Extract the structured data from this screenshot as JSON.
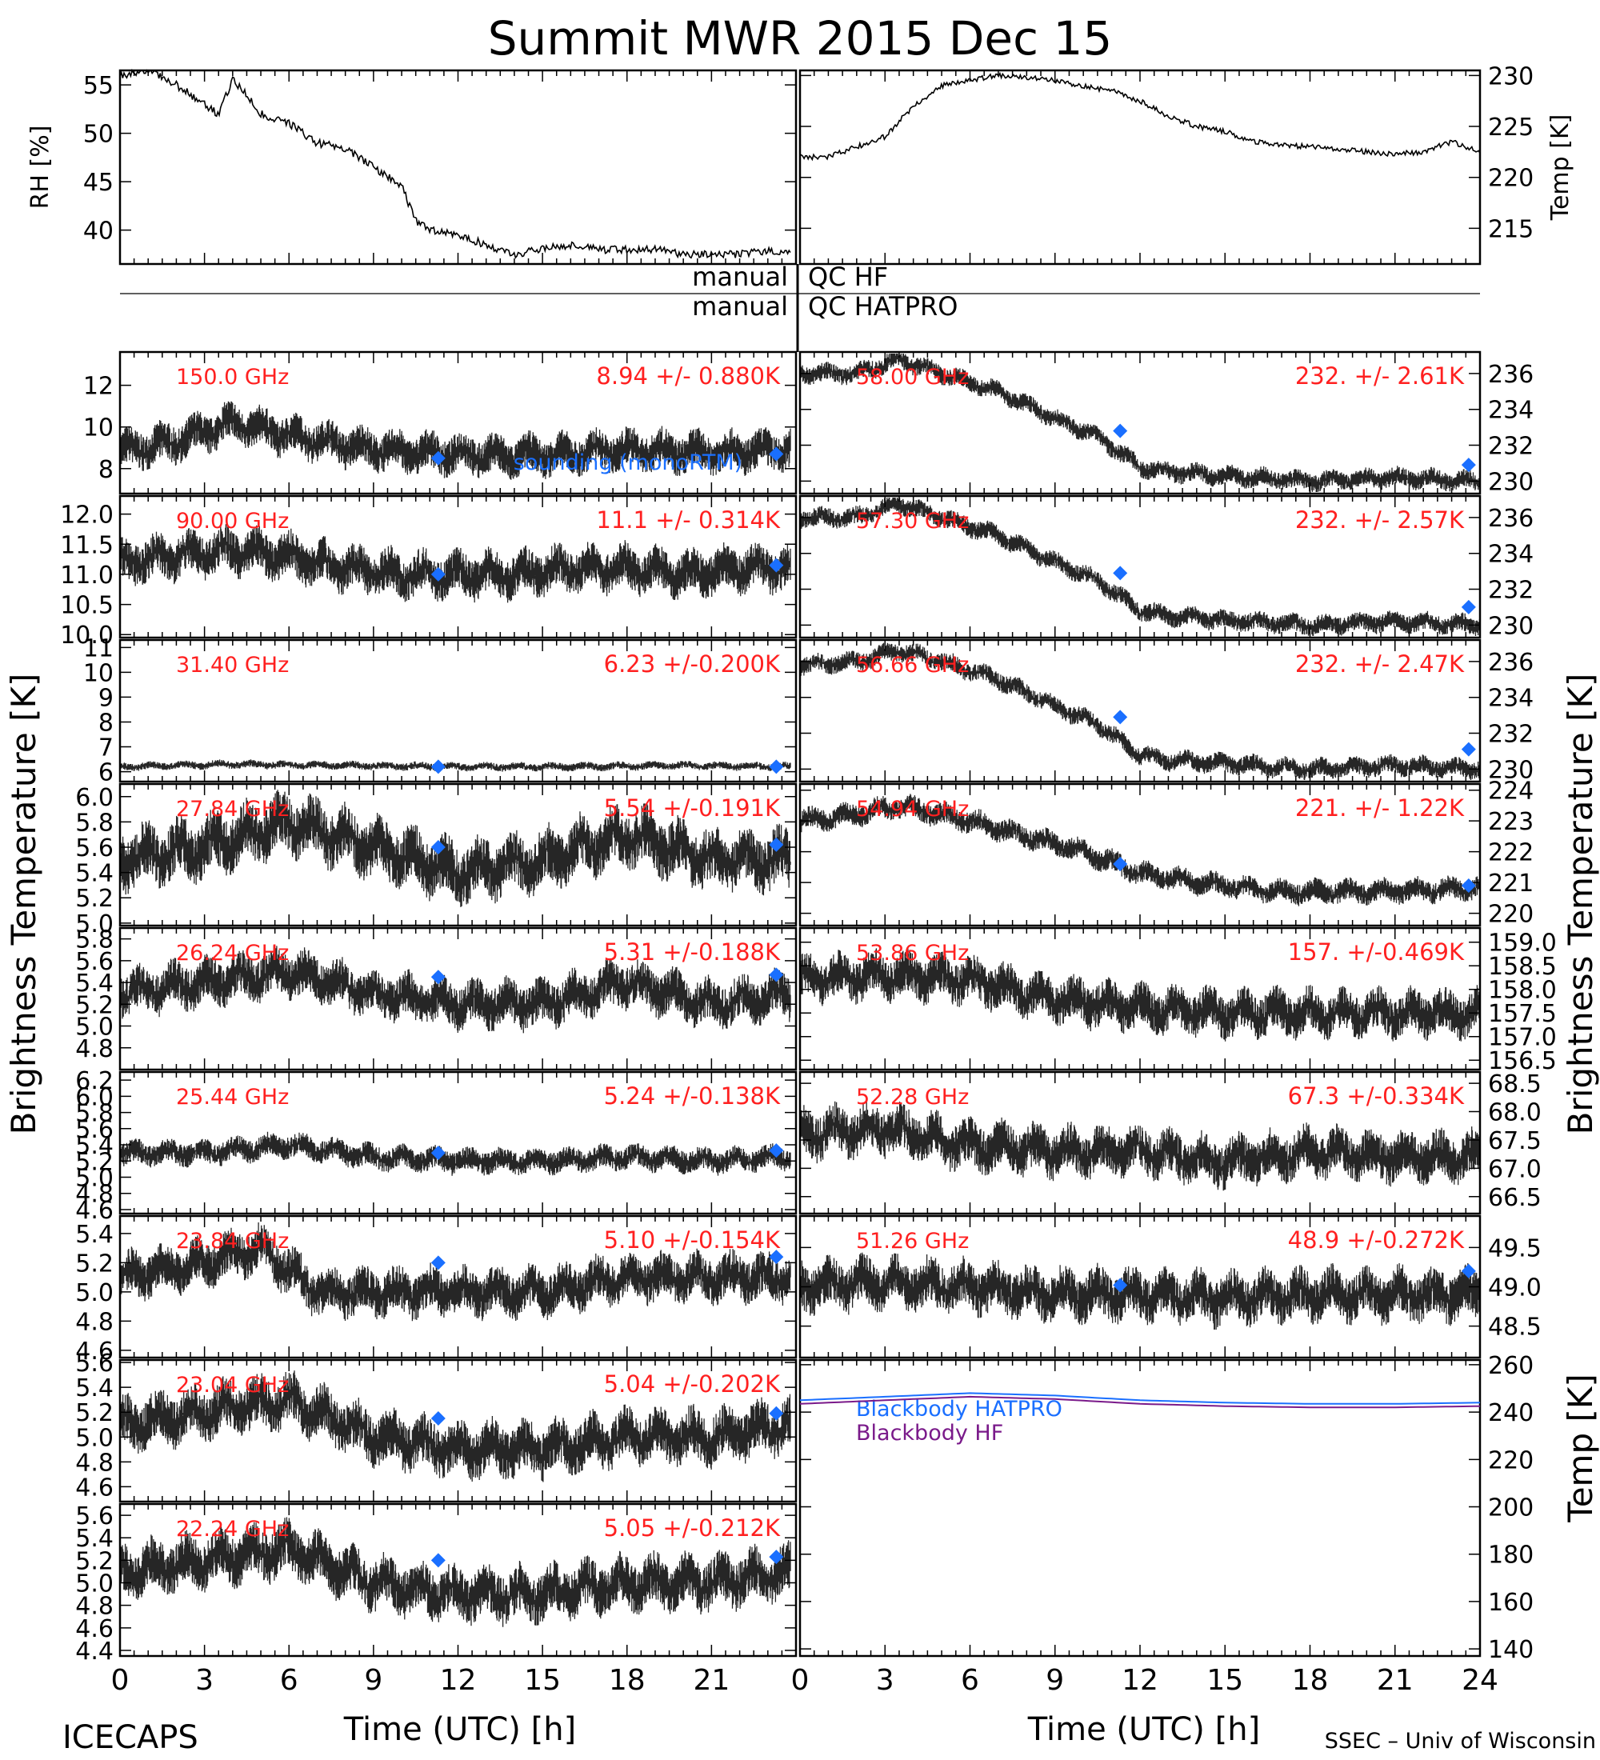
{
  "title": "Summit MWR 2015 Dec 15",
  "footer": {
    "left_label": "ICECAPS",
    "right_label": "SSEC – Univ of Wisconsin",
    "xlabel": "Time (UTC) [h]"
  },
  "colors": {
    "mark": "#000000",
    "annotation": "#ff2020",
    "sounding": "#1a6fff",
    "bb_hatpro": "#1a6fff",
    "bb_hf": "#7a1a8a"
  },
  "qc": {
    "left1": "manual",
    "right1": "QC HF",
    "left2": "manual",
    "right2": "QC HATPRO"
  },
  "side_labels": {
    "left": "Brightness Temperature [K]",
    "right": "Brightness Temperature [K]",
    "right_temp": "Temp [K]"
  },
  "x_ticks_left": [
    "0",
    "3",
    "6",
    "9",
    "12",
    "15",
    "18",
    "21"
  ],
  "x_ticks_right": [
    "0",
    "3",
    "6",
    "9",
    "12",
    "15",
    "18",
    "21",
    "24"
  ],
  "chart_data": [
    {
      "type": "line",
      "panel": "rh",
      "ylabel": "RH [%]",
      "yticks": [
        "40",
        "45",
        "50",
        "55"
      ],
      "ylim": [
        36.5,
        56.5
      ],
      "x_hours": [
        0,
        1,
        2,
        3,
        3.5,
        4,
        4.5,
        5,
        6,
        7,
        8,
        9,
        10,
        10.5,
        11,
        12,
        13,
        14,
        15,
        16,
        17,
        18,
        19,
        20,
        21,
        22,
        23,
        23.8
      ],
      "values": [
        56,
        56.5,
        55,
        53,
        52,
        55.5,
        54,
        52,
        51,
        49,
        48.5,
        46.5,
        44.5,
        41,
        40,
        39.5,
        38.5,
        37.5,
        38,
        38.5,
        38,
        38,
        38,
        37.5,
        37.5,
        37.5,
        37.8,
        37.7
      ]
    },
    {
      "type": "line",
      "panel": "temp",
      "ylabel": "Temp [K]",
      "yticks": [
        "215",
        "220",
        "225",
        "230"
      ],
      "ylim": [
        211.5,
        230.5
      ],
      "x_hours": [
        0,
        1,
        2,
        3,
        4,
        5,
        6,
        7,
        8,
        9,
        10,
        11,
        12,
        13,
        14,
        15,
        16,
        17,
        18,
        19,
        20,
        21,
        22,
        23,
        24
      ],
      "values": [
        222,
        222,
        223,
        224,
        227,
        229,
        229.5,
        230,
        229.8,
        229.5,
        229,
        228.5,
        227.5,
        226,
        225,
        224.5,
        223.5,
        223.2,
        223,
        222.8,
        222.5,
        222.3,
        222.5,
        223.5,
        222.5
      ]
    },
    {
      "type": "scatter",
      "column": "left",
      "row": 0,
      "freq_label": "150.0 GHz",
      "stat_label": "8.94 +/- 0.880K",
      "yticks": [
        "8",
        "10",
        "12"
      ],
      "ylim": [
        6.8,
        13.6
      ],
      "x_hours": [
        0,
        2,
        4,
        6,
        8,
        10,
        12,
        14,
        16,
        18,
        20,
        22,
        23.8
      ],
      "values": [
        8.8,
        9.3,
        10.2,
        9.6,
        9.1,
        8.8,
        8.7,
        8.6,
        8.7,
        8.9,
        8.8,
        8.8,
        8.9
      ],
      "spread": 0.9,
      "sounding": [
        {
          "x": 11.3,
          "y": 8.5
        },
        {
          "x": 23.3,
          "y": 8.7
        }
      ],
      "note": "sounding (monoRTM)"
    },
    {
      "type": "scatter",
      "column": "left",
      "row": 1,
      "freq_label": "90.00 GHz",
      "stat_label": "11.1 +/- 0.314K",
      "yticks": [
        "10.0",
        "10.5",
        "11.0",
        "11.5",
        "12.0"
      ],
      "ylim": [
        9.95,
        12.3
      ],
      "x_hours": [
        0,
        2,
        4,
        6,
        8,
        10,
        12,
        14,
        16,
        18,
        20,
        22,
        23.8
      ],
      "values": [
        11.2,
        11.3,
        11.4,
        11.3,
        11.1,
        11.0,
        11.0,
        11.0,
        11.1,
        11.1,
        11.0,
        11.1,
        11.1
      ],
      "spread": 0.35,
      "sounding": [
        {
          "x": 11.3,
          "y": 11.0
        },
        {
          "x": 23.3,
          "y": 11.15
        }
      ]
    },
    {
      "type": "scatter",
      "column": "left",
      "row": 2,
      "freq_label": "31.40 GHz",
      "stat_label": "6.23 +/-0.200K",
      "yticks": [
        "6",
        "7",
        "8",
        "9",
        "10",
        "11"
      ],
      "ylim": [
        5.6,
        11.3
      ],
      "x_hours": [
        0,
        4,
        8,
        12,
        16,
        20,
        23.8
      ],
      "values": [
        6.2,
        6.3,
        6.25,
        6.2,
        6.2,
        6.25,
        6.2
      ],
      "spread": 0.15,
      "sounding": [
        {
          "x": 11.3,
          "y": 6.2
        },
        {
          "x": 23.3,
          "y": 6.2
        }
      ]
    },
    {
      "type": "scatter",
      "column": "left",
      "row": 3,
      "freq_label": "27.84 GHz",
      "stat_label": "5.54 +/-0.191K",
      "yticks": [
        "5.0",
        "5.2",
        "5.4",
        "5.6",
        "5.8",
        "6.0"
      ],
      "ylim": [
        4.98,
        6.1
      ],
      "x_hours": [
        0,
        3,
        6,
        9,
        12,
        15,
        18,
        21,
        23.8
      ],
      "values": [
        5.5,
        5.6,
        5.8,
        5.6,
        5.4,
        5.5,
        5.7,
        5.5,
        5.5
      ],
      "spread": 0.22,
      "sounding": [
        {
          "x": 11.3,
          "y": 5.6
        },
        {
          "x": 23.3,
          "y": 5.62
        }
      ]
    },
    {
      "type": "scatter",
      "column": "left",
      "row": 4,
      "freq_label": "26.24 GHz",
      "stat_label": "5.31 +/-0.188K",
      "yticks": [
        "4.8",
        "5.0",
        "5.2",
        "5.4",
        "5.6",
        "5.8"
      ],
      "ylim": [
        4.6,
        5.9
      ],
      "x_hours": [
        0,
        3,
        6,
        9,
        12,
        15,
        18,
        21,
        23.8
      ],
      "values": [
        5.3,
        5.4,
        5.5,
        5.3,
        5.2,
        5.2,
        5.4,
        5.2,
        5.3
      ],
      "spread": 0.2,
      "sounding": [
        {
          "x": 11.3,
          "y": 5.45
        },
        {
          "x": 23.3,
          "y": 5.47
        }
      ]
    },
    {
      "type": "scatter",
      "column": "left",
      "row": 5,
      "freq_label": "25.44 GHz",
      "stat_label": "5.24 +/-0.138K",
      "yticks": [
        "4.6",
        "4.8",
        "5.0",
        "5.2",
        "5.4",
        "5.6",
        "5.8",
        "6.0",
        "6.2"
      ],
      "ylim": [
        4.55,
        6.3
      ],
      "x_hours": [
        0,
        3,
        6,
        9,
        12,
        15,
        18,
        21,
        23.8
      ],
      "values": [
        5.3,
        5.3,
        5.4,
        5.25,
        5.2,
        5.2,
        5.25,
        5.2,
        5.25
      ],
      "spread": 0.14,
      "sounding": [
        {
          "x": 11.3,
          "y": 5.3
        },
        {
          "x": 23.3,
          "y": 5.33
        }
      ]
    },
    {
      "type": "scatter",
      "column": "left",
      "row": 6,
      "freq_label": "23.84 GHz",
      "stat_label": "5.10 +/-0.154K",
      "yticks": [
        "4.6",
        "4.8",
        "5.0",
        "5.2",
        "5.4"
      ],
      "ylim": [
        4.55,
        5.52
      ],
      "x_hours": [
        0,
        3,
        5,
        7,
        9,
        12,
        15,
        18,
        21,
        23.8
      ],
      "values": [
        5.1,
        5.2,
        5.3,
        5.0,
        5.0,
        5.0,
        5.0,
        5.1,
        5.1,
        5.1
      ],
      "spread": 0.15,
      "sounding": [
        {
          "x": 11.3,
          "y": 5.2
        },
        {
          "x": 23.3,
          "y": 5.24
        }
      ]
    },
    {
      "type": "scatter",
      "column": "left",
      "row": 7,
      "freq_label": "23.04 GHz",
      "stat_label": "5.04 +/-0.202K",
      "yticks": [
        "4.6",
        "4.8",
        "5.0",
        "5.2",
        "5.4",
        "5.6"
      ],
      "ylim": [
        4.48,
        5.62
      ],
      "x_hours": [
        0,
        3,
        6,
        9,
        12,
        15,
        18,
        21,
        23.8
      ],
      "values": [
        5.1,
        5.2,
        5.3,
        5.0,
        4.9,
        4.9,
        5.0,
        5.0,
        5.1
      ],
      "spread": 0.2,
      "sounding": [
        {
          "x": 11.3,
          "y": 5.15
        },
        {
          "x": 23.3,
          "y": 5.19
        }
      ]
    },
    {
      "type": "scatter",
      "column": "left",
      "row": 8,
      "freq_label": "22.24 GHz",
      "stat_label": "5.05 +/-0.212K",
      "yticks": [
        "4.4",
        "4.6",
        "4.8",
        "5.0",
        "5.2",
        "5.4",
        "5.6"
      ],
      "ylim": [
        4.35,
        5.7
      ],
      "x_hours": [
        0,
        3,
        6,
        9,
        12,
        15,
        18,
        21,
        23.8
      ],
      "values": [
        5.1,
        5.2,
        5.3,
        5.0,
        4.9,
        4.9,
        5.0,
        5.0,
        5.1
      ],
      "spread": 0.22,
      "sounding": [
        {
          "x": 11.3,
          "y": 5.2
        },
        {
          "x": 23.3,
          "y": 5.23
        }
      ]
    },
    {
      "type": "scatter",
      "column": "right",
      "row": 0,
      "freq_label": "58.00 GHz",
      "stat_label": "232. +/- 2.61K",
      "yticks": [
        "230",
        "232",
        "234",
        "236"
      ],
      "ylim": [
        229.3,
        237.2
      ],
      "x_hours": [
        0,
        2,
        3.5,
        5,
        7,
        9,
        10.5,
        12,
        13,
        15,
        18,
        21,
        24
      ],
      "values": [
        236,
        236,
        236.8,
        236,
        235,
        233.5,
        232.5,
        230.8,
        230.5,
        230.3,
        230,
        230.2,
        230
      ],
      "spread": 0.5,
      "sounding": [
        {
          "x": 11.3,
          "y": 232.8
        },
        {
          "x": 23.6,
          "y": 230.9
        }
      ]
    },
    {
      "type": "scatter",
      "column": "right",
      "row": 1,
      "freq_label": "57.30 GHz",
      "stat_label": "232. +/- 2.57K",
      "yticks": [
        "230",
        "232",
        "234",
        "236"
      ],
      "ylim": [
        229.3,
        237.2
      ],
      "x_hours": [
        0,
        2,
        3.5,
        5,
        7,
        9,
        10.5,
        12,
        13,
        15,
        18,
        21,
        24
      ],
      "values": [
        236,
        236,
        236.8,
        236,
        235,
        233.5,
        232.5,
        230.8,
        230.5,
        230.3,
        230,
        230.2,
        230
      ],
      "spread": 0.5,
      "sounding": [
        {
          "x": 11.3,
          "y": 232.9
        },
        {
          "x": 23.6,
          "y": 231
        }
      ]
    },
    {
      "type": "scatter",
      "column": "right",
      "row": 2,
      "freq_label": "56.66 GHz",
      "stat_label": "232. +/- 2.47K",
      "yticks": [
        "230",
        "232",
        "234",
        "236"
      ],
      "ylim": [
        229.3,
        237.2
      ],
      "x_hours": [
        0,
        2,
        3.5,
        5,
        7,
        9,
        10.5,
        12,
        13,
        15,
        18,
        21,
        24
      ],
      "values": [
        235.8,
        236,
        236.6,
        236,
        235,
        233.5,
        232.5,
        230.8,
        230.5,
        230.3,
        230,
        230.2,
        230
      ],
      "spread": 0.5,
      "sounding": [
        {
          "x": 11.3,
          "y": 232.9
        },
        {
          "x": 23.6,
          "y": 231.1
        }
      ]
    },
    {
      "type": "scatter",
      "column": "right",
      "row": 3,
      "freq_label": "54.94 GHz",
      "stat_label": "221. +/- 1.22K",
      "yticks": [
        "220",
        "221",
        "222",
        "223",
        "224"
      ],
      "ylim": [
        219.6,
        224.2
      ],
      "x_hours": [
        0,
        2,
        3.5,
        6,
        8,
        10,
        12,
        14,
        17,
        20,
        24
      ],
      "values": [
        223,
        223.2,
        223.5,
        223,
        222.5,
        222,
        221.3,
        221,
        220.7,
        220.7,
        220.8
      ],
      "spread": 0.35,
      "sounding": [
        {
          "x": 11.3,
          "y": 221.6
        },
        {
          "x": 23.6,
          "y": 220.9
        }
      ]
    },
    {
      "type": "scatter",
      "column": "right",
      "row": 4,
      "freq_label": "53.86 GHz",
      "stat_label": "157. +/-0.469K",
      "yticks": [
        "156.5",
        "157.0",
        "157.5",
        "158.0",
        "158.5",
        "159.0"
      ],
      "ylim": [
        156.3,
        159.3
      ],
      "x_hours": [
        0,
        3,
        6,
        9,
        12,
        15,
        18,
        21,
        24
      ],
      "values": [
        158.2,
        158.3,
        158.2,
        157.8,
        157.6,
        157.5,
        157.5,
        157.5,
        157.5
      ],
      "spread": 0.45,
      "sounding": []
    },
    {
      "type": "scatter",
      "column": "right",
      "row": 5,
      "freq_label": "52.28 GHz",
      "stat_label": "67.3 +/-0.334K",
      "yticks": [
        "66.5",
        "67.0",
        "67.5",
        "68.0",
        "68.5"
      ],
      "ylim": [
        66.2,
        68.7
      ],
      "x_hours": [
        0,
        3,
        6,
        9,
        12,
        15,
        18,
        21,
        24
      ],
      "values": [
        67.6,
        67.7,
        67.4,
        67.3,
        67.3,
        67.1,
        67.3,
        67.2,
        67.2
      ],
      "spread": 0.4,
      "sounding": []
    },
    {
      "type": "scatter",
      "column": "right",
      "row": 6,
      "freq_label": "51.26 GHz",
      "stat_label": "48.9 +/-0.272K",
      "yticks": [
        "48.5",
        "49.0",
        "49.5"
      ],
      "ylim": [
        48.1,
        49.9
      ],
      "x_hours": [
        0,
        3,
        6,
        9,
        12,
        15,
        18,
        21,
        24
      ],
      "values": [
        49.0,
        49.05,
        49.0,
        48.9,
        48.9,
        48.85,
        48.9,
        48.9,
        48.9
      ],
      "spread": 0.3,
      "sounding": [
        {
          "x": 11.3,
          "y": 49.02
        },
        {
          "x": 23.6,
          "y": 49.2
        }
      ]
    },
    {
      "type": "line",
      "panel": "blackbody",
      "yticks": [
        "140",
        "160",
        "180",
        "200",
        "220",
        "240",
        "260"
      ],
      "ylim": [
        137,
        262
      ],
      "x_hours": [
        0,
        3,
        6,
        9,
        12,
        15,
        18,
        21,
        24
      ],
      "series": [
        {
          "name": "Blackbody HATPRO",
          "values": [
            245,
            246.5,
            248,
            247,
            245,
            244,
            243.5,
            243.5,
            244
          ]
        },
        {
          "name": "Blackbody HF",
          "values": [
            243.5,
            245,
            246.5,
            245.5,
            243.5,
            242.5,
            242,
            242,
            242.5
          ]
        }
      ]
    }
  ]
}
